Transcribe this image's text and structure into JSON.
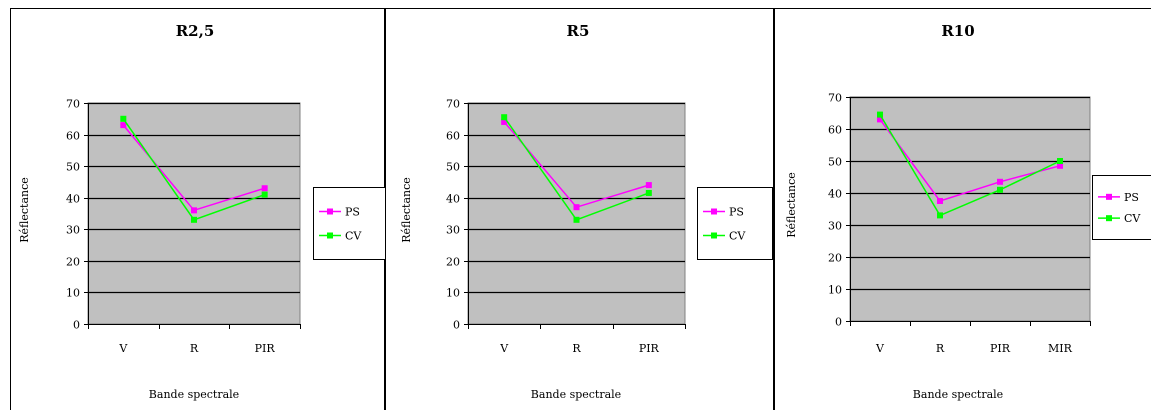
{
  "chart_data": [
    {
      "type": "line",
      "title": "R2,5",
      "xlabel": "Bande spectrale",
      "ylabel": "Réflectance",
      "categories": [
        "V",
        "R",
        "PIR"
      ],
      "ylim": [
        0,
        70
      ],
      "yticks": [
        0,
        10,
        20,
        30,
        40,
        50,
        60,
        70
      ],
      "grid": true,
      "legend": "right",
      "series": [
        {
          "name": "PS",
          "color": "#ff00ff",
          "values": [
            63,
            36,
            43
          ]
        },
        {
          "name": "CV",
          "color": "#00ff00",
          "values": [
            65,
            33,
            41
          ]
        }
      ]
    },
    {
      "type": "line",
      "title": "R5",
      "xlabel": "Bande spectrale",
      "ylabel": "Réflectance",
      "categories": [
        "V",
        "R",
        "PIR"
      ],
      "ylim": [
        0,
        70
      ],
      "yticks": [
        0,
        10,
        20,
        30,
        40,
        50,
        60,
        70
      ],
      "grid": true,
      "legend": "right",
      "series": [
        {
          "name": "PS",
          "color": "#ff00ff",
          "values": [
            64,
            37,
            44
          ]
        },
        {
          "name": "CV",
          "color": "#00ff00",
          "values": [
            65.5,
            33,
            41.5
          ]
        }
      ]
    },
    {
      "type": "line",
      "title": "R10",
      "xlabel": "Bande spectrale",
      "ylabel": "Réflectance",
      "categories": [
        "V",
        "R",
        "PIR",
        "MIR"
      ],
      "ylim": [
        0,
        70
      ],
      "yticks": [
        0,
        10,
        20,
        30,
        40,
        50,
        60,
        70
      ],
      "grid": true,
      "legend": "right",
      "series": [
        {
          "name": "PS",
          "color": "#ff00ff",
          "values": [
            63,
            37.5,
            43.5,
            48.5
          ]
        },
        {
          "name": "CV",
          "color": "#00ff00",
          "values": [
            64.5,
            33,
            41,
            50
          ]
        }
      ]
    }
  ]
}
